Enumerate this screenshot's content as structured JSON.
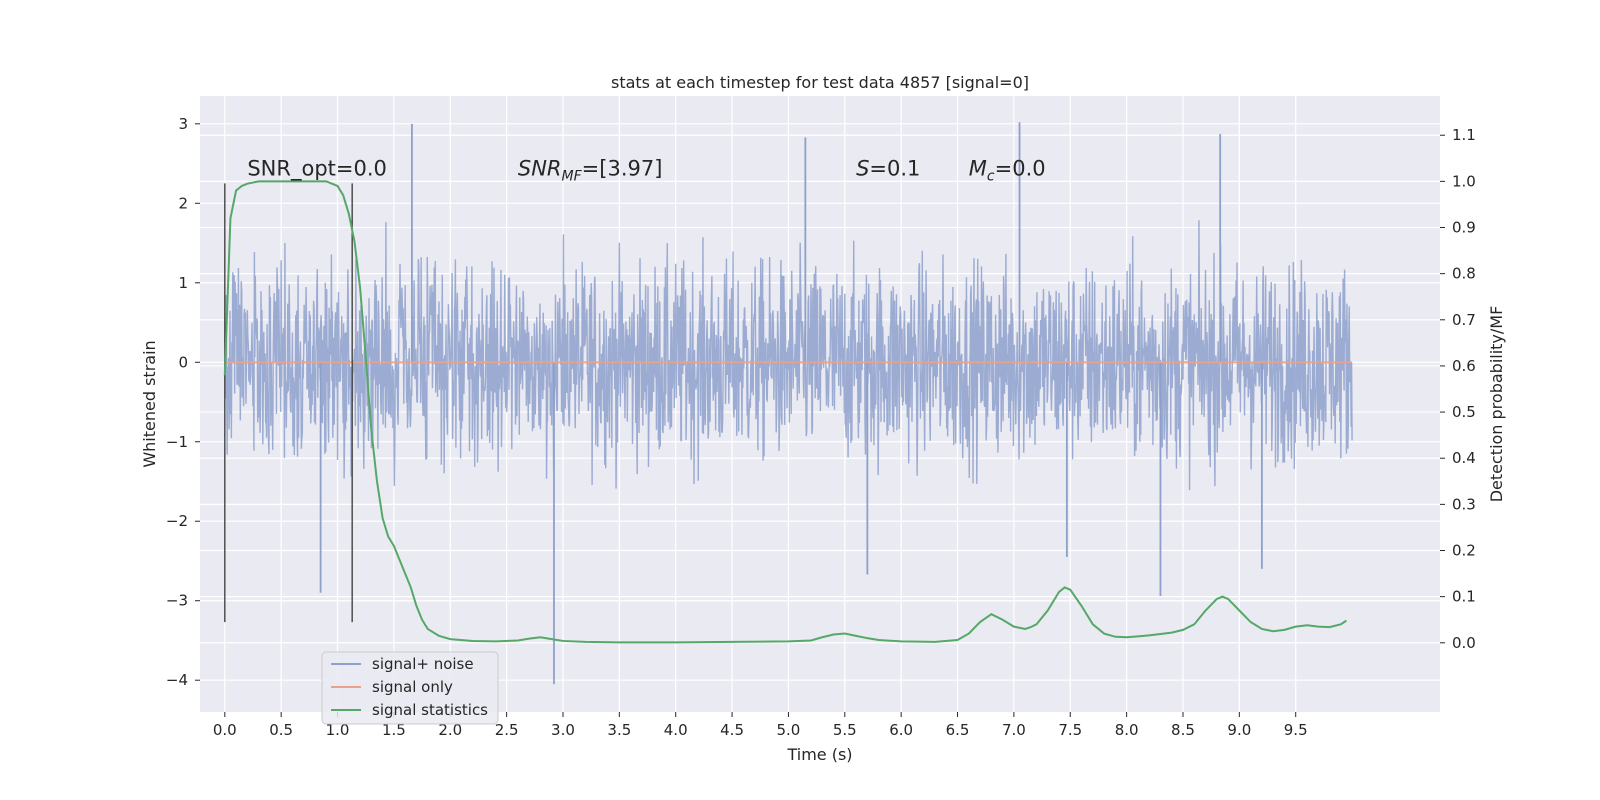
{
  "chart_data": {
    "type": "line",
    "title": "stats at each timestep for test data 4857 [signal=0]",
    "xlabel": "Time (s)",
    "ylabel": "Whitened strain",
    "y2label": "Detection probability/MF",
    "xlim": [
      -0.22,
      10.78
    ],
    "ylim": [
      -4.4,
      3.35
    ],
    "y2lim": [
      -0.15,
      1.185
    ],
    "x_ticks": [
      0.0,
      0.5,
      1.0,
      1.5,
      2.0,
      2.5,
      3.0,
      3.5,
      4.0,
      4.5,
      5.0,
      5.5,
      6.0,
      6.5,
      7.0,
      7.5,
      8.0,
      8.5,
      9.0,
      9.5
    ],
    "x_tick_labels": [
      "0.0",
      "0.5",
      "1.0",
      "1.5",
      "2.0",
      "2.5",
      "3.0",
      "3.5",
      "4.0",
      "4.5",
      "5.0",
      "5.5",
      "6.0",
      "6.5",
      "7.0",
      "7.5",
      "8.0",
      "8.5",
      "9.0",
      "9.5"
    ],
    "y_ticks": [
      3,
      2,
      1,
      0,
      -1,
      -2,
      -3,
      -4
    ],
    "y_tick_labels": [
      "3",
      "2",
      "1",
      "0",
      "−1",
      "−2",
      "−3",
      "−4"
    ],
    "y2_ticks": [
      1.1,
      1.0,
      0.9,
      0.8,
      0.7,
      0.6,
      0.5,
      0.4,
      0.3,
      0.2,
      0.1,
      0.0
    ],
    "y2_tick_labels": [
      "1.1",
      "1.0",
      "0.9",
      "0.8",
      "0.7",
      "0.6",
      "0.5",
      "0.4",
      "0.3",
      "0.2",
      "0.1",
      "0.0"
    ],
    "grid": true,
    "legend_position": "bottom-left",
    "legend": [
      {
        "label": "signal+ noise",
        "color": "#8da0cb"
      },
      {
        "label": "signal only",
        "color": "#e8a38d"
      },
      {
        "label": "signal statistics",
        "color": "#55a868"
      }
    ],
    "annotations": [
      {
        "text": "SNR_opt=0.0",
        "x": 0.2,
        "y": 2.35
      },
      {
        "text": "SNR",
        "sub": "MF",
        "rest": "=[3.97]",
        "x": 2.6,
        "y": 2.35
      },
      {
        "text": "S",
        "rest": "=0.1",
        "x": 5.6,
        "y": 2.35
      },
      {
        "text": "M",
        "sub": "c",
        "rest": "=0.0",
        "x": 6.6,
        "y": 2.35
      }
    ],
    "vertical_lines": [
      {
        "x": 0.0,
        "y_range": [
          -3.27,
          2.25
        ]
      },
      {
        "x": 1.13,
        "y_range": [
          -3.27,
          2.25
        ]
      }
    ],
    "series": [
      {
        "name": "signal+ noise",
        "axis": "left",
        "color": "#8da0cb",
        "x_range": [
          0.0,
          10.0
        ],
        "envelope": {
          "typical_amplitude": 1.6,
          "extremes": [
            {
              "x": 1.66,
              "y": 3.0
            },
            {
              "x": 7.05,
              "y": 3.02
            },
            {
              "x": 8.83,
              "y": 2.87
            },
            {
              "x": 5.15,
              "y": 2.83
            },
            {
              "x": 2.92,
              "y": -4.05
            },
            {
              "x": 5.7,
              "y": -2.67
            },
            {
              "x": 7.47,
              "y": -2.45
            },
            {
              "x": 8.3,
              "y": -2.94
            },
            {
              "x": 0.85,
              "y": -2.9
            },
            {
              "x": 9.2,
              "y": -2.6
            }
          ]
        }
      },
      {
        "name": "signal only",
        "axis": "left",
        "color": "#e8a38d",
        "x": [
          0.0,
          10.0
        ],
        "values": [
          0.0,
          0.0
        ]
      },
      {
        "name": "signal statistics",
        "axis": "right",
        "color": "#55a868",
        "x": [
          0.0,
          0.05,
          0.1,
          0.15,
          0.2,
          0.3,
          0.4,
          0.5,
          0.6,
          0.7,
          0.8,
          0.9,
          1.0,
          1.05,
          1.1,
          1.15,
          1.2,
          1.25,
          1.3,
          1.35,
          1.4,
          1.45,
          1.5,
          1.55,
          1.6,
          1.65,
          1.7,
          1.75,
          1.8,
          1.9,
          2.0,
          2.2,
          2.4,
          2.6,
          2.7,
          2.8,
          2.9,
          3.0,
          3.2,
          3.5,
          4.0,
          4.5,
          5.0,
          5.2,
          5.3,
          5.4,
          5.5,
          5.6,
          5.7,
          5.8,
          6.0,
          6.3,
          6.5,
          6.6,
          6.7,
          6.8,
          6.9,
          7.0,
          7.1,
          7.15,
          7.2,
          7.3,
          7.35,
          7.4,
          7.45,
          7.5,
          7.6,
          7.7,
          7.8,
          7.9,
          8.0,
          8.2,
          8.4,
          8.5,
          8.6,
          8.7,
          8.8,
          8.85,
          8.9,
          9.0,
          9.1,
          9.2,
          9.3,
          9.4,
          9.5,
          9.6,
          9.7,
          9.8,
          9.9,
          9.95
        ],
        "values": [
          0.58,
          0.92,
          0.98,
          0.99,
          0.995,
          1.0,
          1.0,
          1.0,
          1.0,
          1.0,
          1.0,
          1.0,
          0.99,
          0.97,
          0.93,
          0.87,
          0.77,
          0.62,
          0.46,
          0.35,
          0.27,
          0.23,
          0.21,
          0.18,
          0.15,
          0.12,
          0.08,
          0.05,
          0.03,
          0.015,
          0.008,
          0.004,
          0.003,
          0.005,
          0.009,
          0.012,
          0.008,
          0.004,
          0.002,
          0.001,
          0.001,
          0.002,
          0.003,
          0.005,
          0.012,
          0.018,
          0.02,
          0.015,
          0.01,
          0.006,
          0.003,
          0.002,
          0.006,
          0.02,
          0.045,
          0.062,
          0.05,
          0.035,
          0.03,
          0.034,
          0.04,
          0.07,
          0.09,
          0.11,
          0.12,
          0.115,
          0.08,
          0.04,
          0.02,
          0.013,
          0.012,
          0.016,
          0.022,
          0.028,
          0.04,
          0.07,
          0.095,
          0.1,
          0.095,
          0.07,
          0.045,
          0.03,
          0.025,
          0.028,
          0.035,
          0.038,
          0.035,
          0.034,
          0.04,
          0.048
        ]
      }
    ]
  }
}
